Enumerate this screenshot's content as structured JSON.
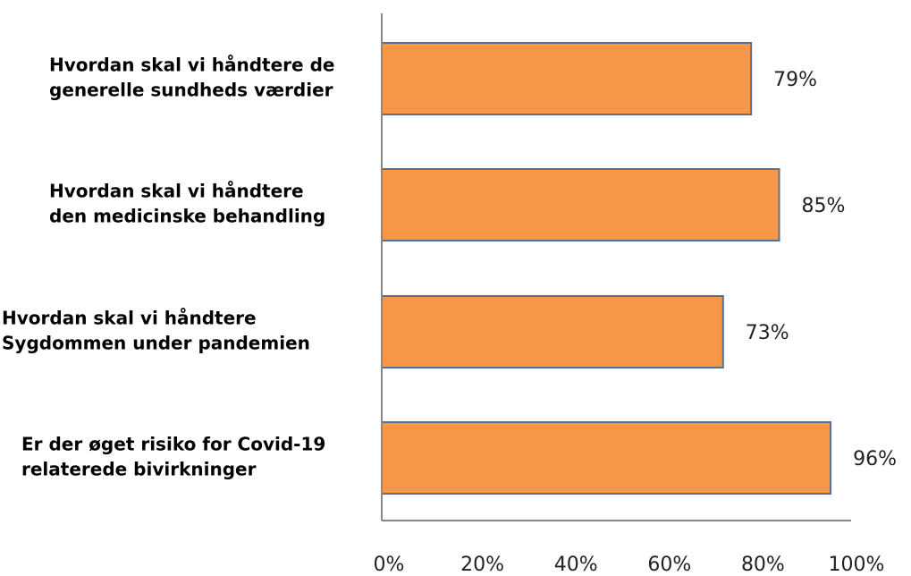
{
  "chart_data": {
    "type": "bar",
    "orientation": "horizontal",
    "categories": [
      [
        "Hvordan skal vi håndtere de",
        "generelle sundheds værdier"
      ],
      [
        "Hvordan skal vi håndtere",
        "den medicinske behandling"
      ],
      [
        "Hvordan skal vi håndtere",
        "Sygdommen under pandemien"
      ],
      [
        "Er der øget risiko for Covid-19",
        "relaterede bivirkninger"
      ]
    ],
    "values": [
      79,
      85,
      73,
      96
    ],
    "value_labels": [
      "79%",
      "85%",
      "73%",
      "96%"
    ],
    "color": "#f79646",
    "xlim": [
      0,
      100
    ],
    "xticks": [
      {
        "value": 0,
        "label": "0%"
      },
      {
        "value": 20,
        "label": "20%"
      },
      {
        "value": 40,
        "label": "40%"
      },
      {
        "value": 60,
        "label": "60%"
      },
      {
        "value": 80,
        "label": "80%"
      },
      {
        "value": 100,
        "label": "100%"
      }
    ],
    "grid": false
  }
}
